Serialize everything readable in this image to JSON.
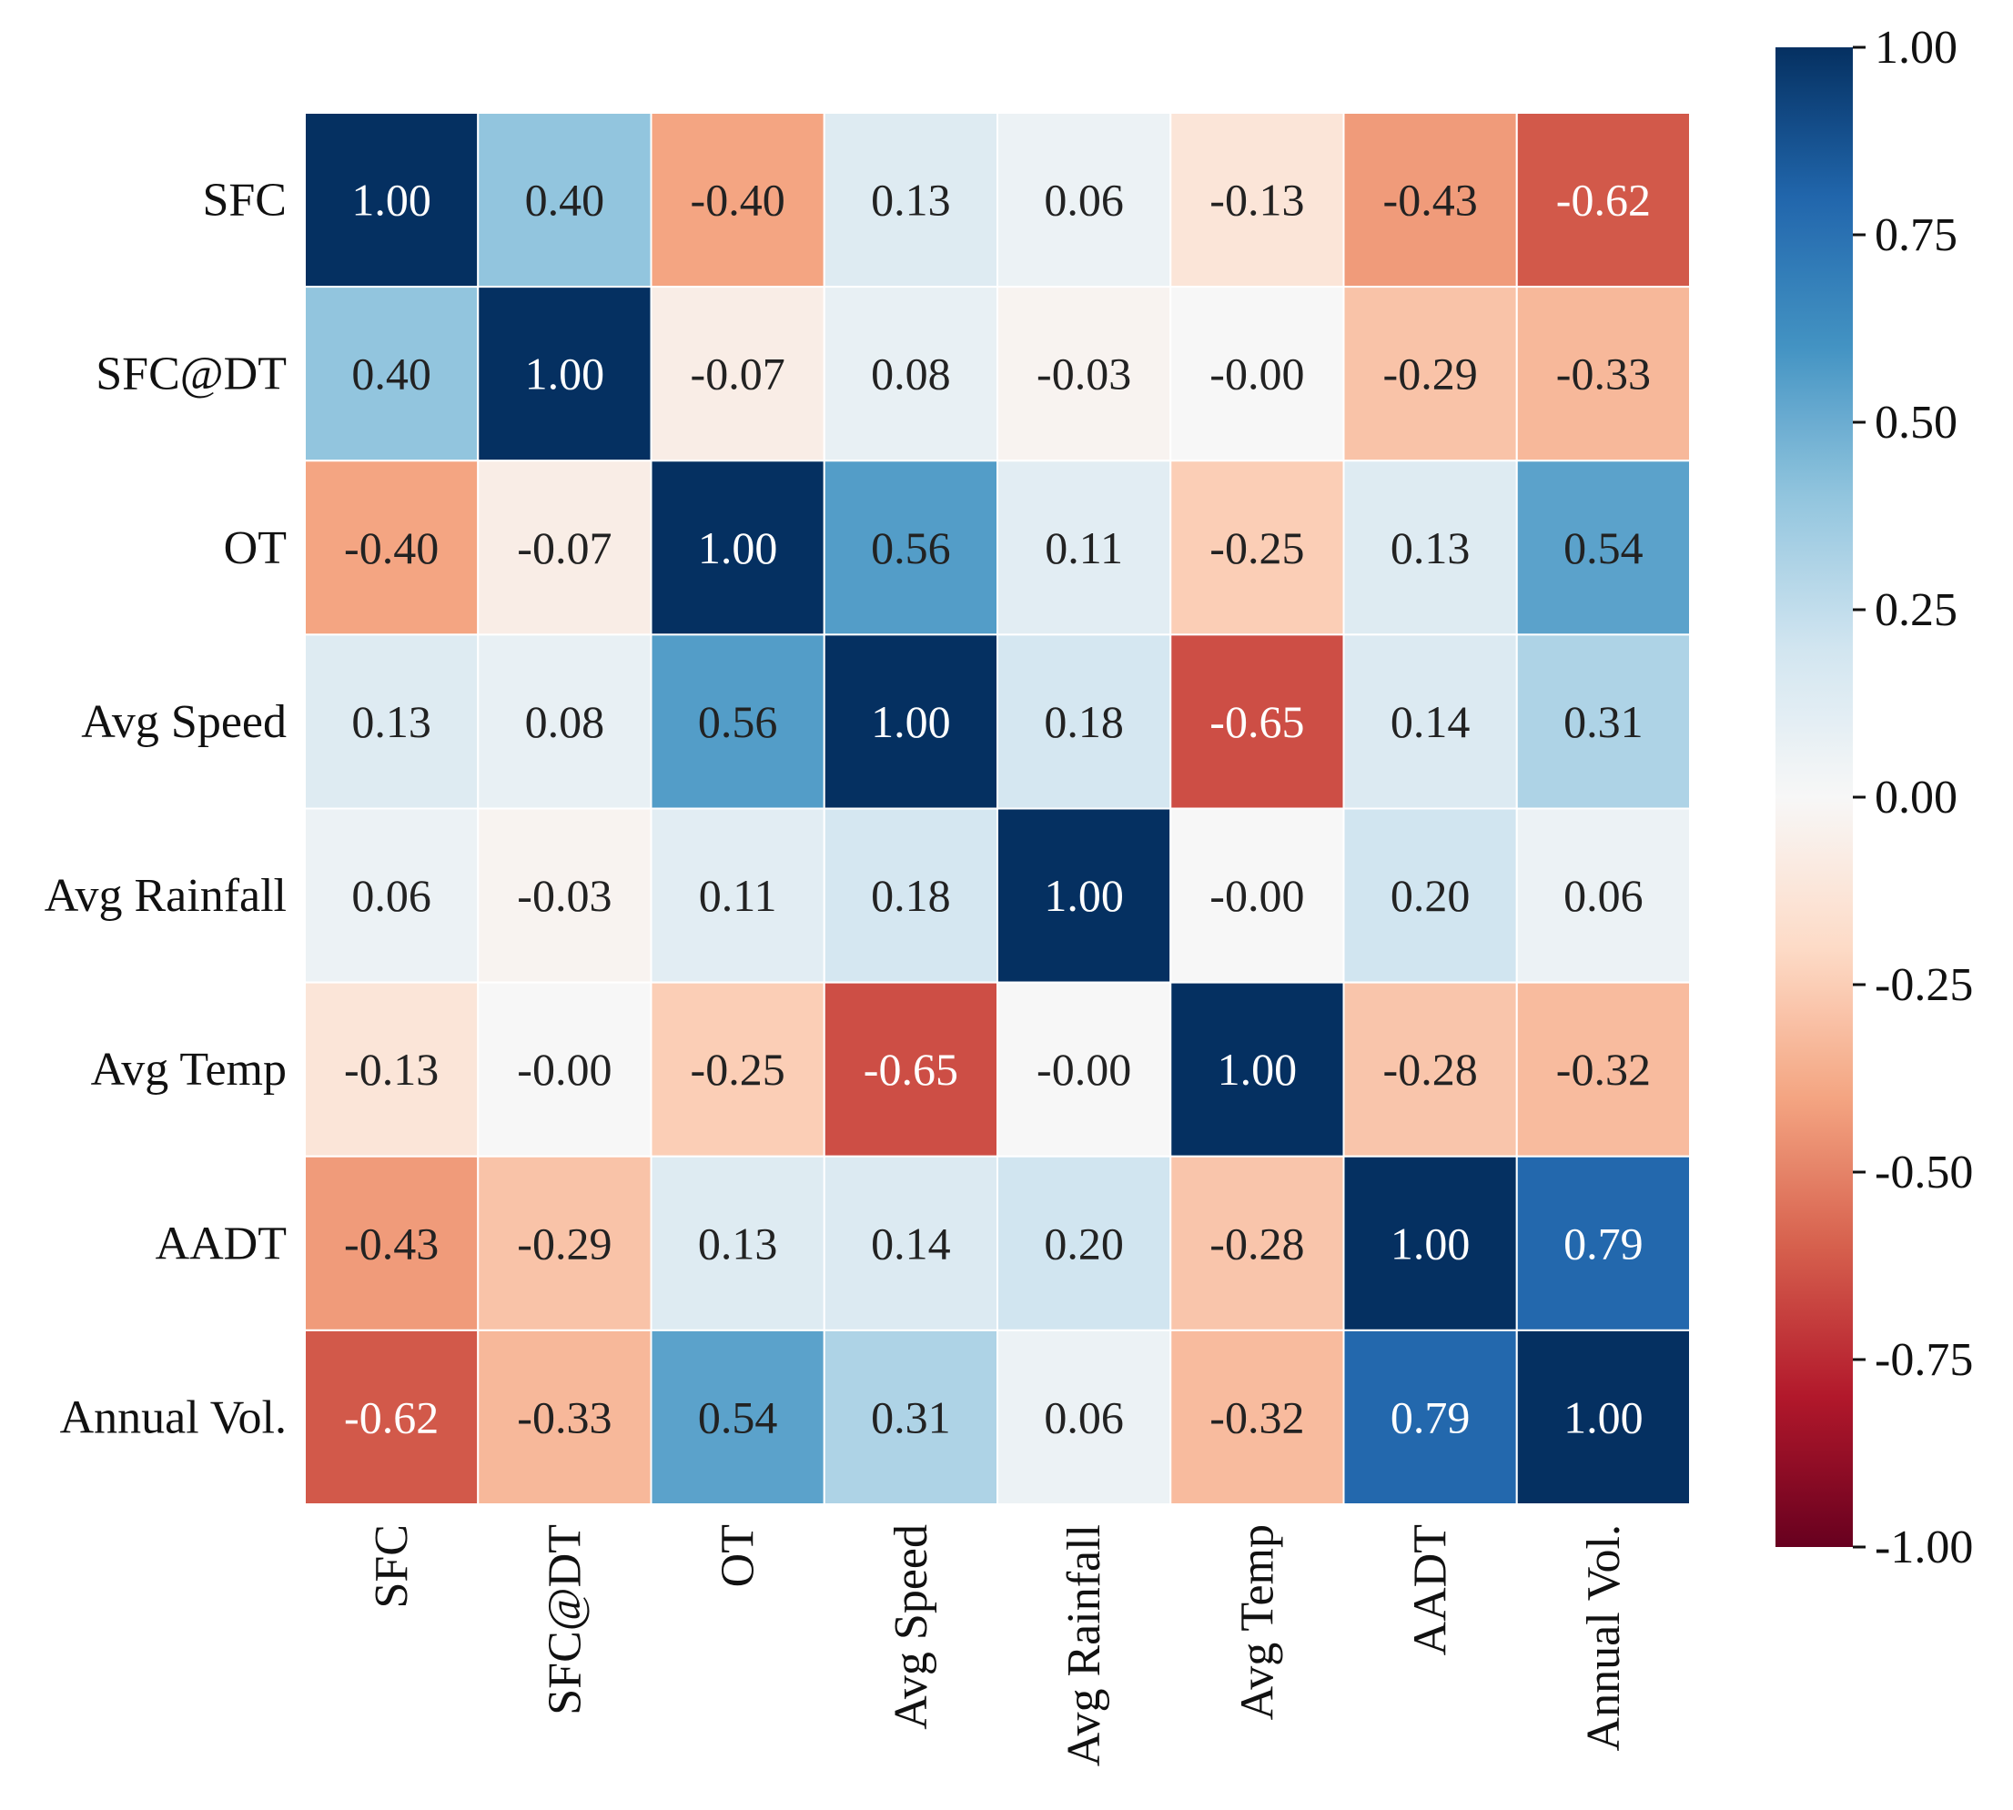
{
  "chart_data": {
    "type": "heatmap",
    "title": "",
    "labels": [
      "SFC",
      "SFC@DT",
      "OT",
      "Avg  Speed",
      "Avg Rainfall",
      "Avg  Temp",
      "AADT",
      "Annual Vol."
    ],
    "values": [
      [
        1.0,
        0.4,
        -0.4,
        0.13,
        0.06,
        -0.13,
        -0.43,
        -0.62
      ],
      [
        0.4,
        1.0,
        -0.07,
        0.08,
        -0.03,
        -0.0,
        -0.29,
        -0.33
      ],
      [
        -0.4,
        -0.07,
        1.0,
        0.56,
        0.11,
        -0.25,
        0.13,
        0.54
      ],
      [
        0.13,
        0.08,
        0.56,
        1.0,
        0.18,
        -0.65,
        0.14,
        0.31
      ],
      [
        0.06,
        -0.03,
        0.11,
        0.18,
        1.0,
        -0.0,
        0.2,
        0.06
      ],
      [
        -0.13,
        -0.0,
        -0.25,
        -0.65,
        -0.0,
        1.0,
        -0.28,
        -0.32
      ],
      [
        -0.43,
        -0.29,
        0.13,
        0.14,
        0.2,
        -0.28,
        1.0,
        0.79
      ],
      [
        -0.62,
        -0.33,
        0.54,
        0.31,
        0.06,
        -0.32,
        0.79,
        1.0
      ]
    ],
    "value_labels": [
      [
        "1.00",
        "0.40",
        "-0.40",
        "0.13",
        "0.06",
        "-0.13",
        "-0.43",
        "-0.62"
      ],
      [
        "0.40",
        "1.00",
        "-0.07",
        "0.08",
        "-0.03",
        "-0.00",
        "-0.29",
        "-0.33"
      ],
      [
        "-0.40",
        "-0.07",
        "1.00",
        "0.56",
        "0.11",
        "-0.25",
        "0.13",
        "0.54"
      ],
      [
        "0.13",
        "0.08",
        "0.56",
        "1.00",
        "0.18",
        "-0.65",
        "0.14",
        "0.31"
      ],
      [
        "0.06",
        "-0.03",
        "0.11",
        "0.18",
        "1.00",
        "-0.00",
        "0.20",
        "0.06"
      ],
      [
        "-0.13",
        "-0.00",
        "-0.25",
        "-0.65",
        "-0.00",
        "1.00",
        "-0.28",
        "-0.32"
      ],
      [
        "-0.43",
        "-0.29",
        "0.13",
        "0.14",
        "0.20",
        "-0.28",
        "1.00",
        "0.79"
      ],
      [
        "-0.62",
        "-0.33",
        "0.54",
        "0.31",
        "0.06",
        "-0.32",
        "0.79",
        "1.00"
      ]
    ],
    "colormap": "RdBu",
    "vmin": -1.0,
    "vmax": 1.0,
    "colorbar": {
      "ticks": [
        1.0,
        0.75,
        0.5,
        0.25,
        0.0,
        -0.25,
        -0.5,
        -0.75,
        -1.0
      ],
      "tick_labels": [
        "1.00",
        "0.75",
        "0.50",
        "0.25",
        "0.00",
        "-0.25",
        "-0.50",
        "-0.75",
        "-1.00"
      ],
      "placement": "right"
    }
  }
}
